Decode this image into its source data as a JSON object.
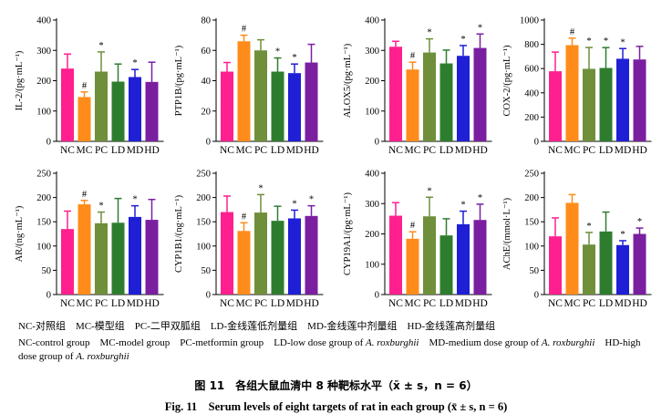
{
  "legend": {
    "cn": "NC-对照组　MC-模型组　PC-二甲双胍组　LD-金线莲低剂量组　MD-金线莲中剂量组　HD-金线莲高剂量组",
    "en_1": "NC-control group",
    "en_2": "MC-model group",
    "en_3": "PC-metformin group",
    "en_4a": "LD-low dose group of",
    "en_species": "A. roxburghii",
    "en_5a": "MD-medium dose group of",
    "en_6a": "HD-high dose group of"
  },
  "caption": {
    "cn": "图 11　各组大鼠血清中 8 种靶标水平（x̄ ± s，n = 6）",
    "en": "Fig. 11　Serum levels of eight targets of rat in each group (x̄ ± s, n = 6)"
  },
  "colors": [
    "#ff1f8f",
    "#ff8c1a",
    "#6f8f3a",
    "#2e7d2e",
    "#1f1fd6",
    "#7a1fa0"
  ],
  "chart_data": [
    {
      "type": "bar",
      "ylabel": "IL-2/(pg·mL⁻¹)",
      "categories": [
        "NC",
        "MC",
        "PC",
        "LD",
        "MD",
        "HD"
      ],
      "values": [
        240,
        146,
        230,
        197,
        212,
        196
      ],
      "errors": [
        48,
        17,
        65,
        58,
        25,
        65
      ],
      "marks": [
        "",
        "#",
        "*",
        "",
        "*",
        ""
      ],
      "ylim": [
        0,
        400
      ],
      "ticks": [
        0,
        100,
        200,
        300,
        400
      ]
    },
    {
      "type": "bar",
      "ylabel": "PTP1B/(pg·mL⁻¹)",
      "categories": [
        "NC",
        "MC",
        "PC",
        "LD",
        "MD",
        "HD"
      ],
      "values": [
        46,
        66,
        60,
        46,
        45,
        52
      ],
      "errors": [
        6,
        4,
        7,
        9,
        6,
        12
      ],
      "marks": [
        "",
        "#",
        "",
        "*",
        "*",
        ""
      ],
      "ylim": [
        0,
        80
      ],
      "ticks": [
        0,
        20,
        40,
        60,
        80
      ]
    },
    {
      "type": "bar",
      "ylabel": "ALOX5/(pg·mL⁻¹)",
      "categories": [
        "NC",
        "MC",
        "PC",
        "LD",
        "MD",
        "HD"
      ],
      "values": [
        312,
        237,
        293,
        257,
        282,
        308
      ],
      "errors": [
        18,
        24,
        45,
        44,
        34,
        46
      ],
      "marks": [
        "",
        "#",
        "*",
        "",
        "*",
        "*"
      ],
      "ylim": [
        0,
        400
      ],
      "ticks": [
        0,
        100,
        200,
        300,
        400
      ]
    },
    {
      "type": "bar",
      "ylabel": "COX-2/(pg·mL⁻¹)",
      "categories": [
        "NC",
        "MC",
        "PC",
        "LD",
        "MD",
        "HD"
      ],
      "values": [
        578,
        793,
        598,
        605,
        681,
        675
      ],
      "errors": [
        158,
        58,
        176,
        168,
        84,
        108
      ],
      "marks": [
        "",
        "#",
        "*",
        "*",
        "*",
        ""
      ],
      "ylim": [
        0,
        1000
      ],
      "ticks": [
        0,
        200,
        400,
        600,
        800,
        1000
      ]
    },
    {
      "type": "bar",
      "ylabel": "AR/(ng·mL⁻¹)",
      "categories": [
        "NC",
        "MC",
        "PC",
        "LD",
        "MD",
        "HD"
      ],
      "values": [
        135,
        186,
        147,
        148,
        160,
        154
      ],
      "errors": [
        37,
        8,
        23,
        50,
        23,
        42
      ],
      "marks": [
        "",
        "#",
        "*",
        "",
        "*",
        ""
      ],
      "ylim": [
        0,
        250
      ],
      "ticks": [
        0,
        50,
        100,
        150,
        200,
        250
      ]
    },
    {
      "type": "bar",
      "ylabel": "CYP1B1/(ng·mL⁻¹)",
      "categories": [
        "NC",
        "MC",
        "PC",
        "LD",
        "MD",
        "HD"
      ],
      "values": [
        170,
        131,
        169,
        152,
        157,
        162
      ],
      "errors": [
        33,
        17,
        37,
        30,
        17,
        21
      ],
      "marks": [
        "",
        "#",
        "*",
        "",
        "*",
        "*"
      ],
      "ylim": [
        0,
        250
      ],
      "ticks": [
        0,
        50,
        100,
        150,
        200,
        250
      ]
    },
    {
      "type": "bar",
      "ylabel": "CYP19A1/(pg·mL⁻¹)",
      "categories": [
        "NC",
        "MC",
        "PC",
        "LD",
        "MD",
        "HD"
      ],
      "values": [
        260,
        184,
        258,
        195,
        232,
        246
      ],
      "errors": [
        43,
        23,
        63,
        55,
        43,
        52
      ],
      "marks": [
        "",
        "#",
        "*",
        "",
        "*",
        "*"
      ],
      "ylim": [
        0,
        400
      ],
      "ticks": [
        0,
        100,
        200,
        300,
        400
      ]
    },
    {
      "type": "bar",
      "ylabel": "AChE/(mmol·L⁻¹)",
      "categories": [
        "NC",
        "MC",
        "PC",
        "LD",
        "MD",
        "HD"
      ],
      "values": [
        120,
        189,
        103,
        130,
        102,
        125
      ],
      "errors": [
        38,
        17,
        25,
        40,
        9,
        12
      ],
      "marks": [
        "",
        "",
        "*",
        "",
        "*",
        "*"
      ],
      "ylim": [
        0,
        250
      ],
      "ticks": [
        0,
        50,
        100,
        150,
        200,
        250
      ]
    }
  ]
}
